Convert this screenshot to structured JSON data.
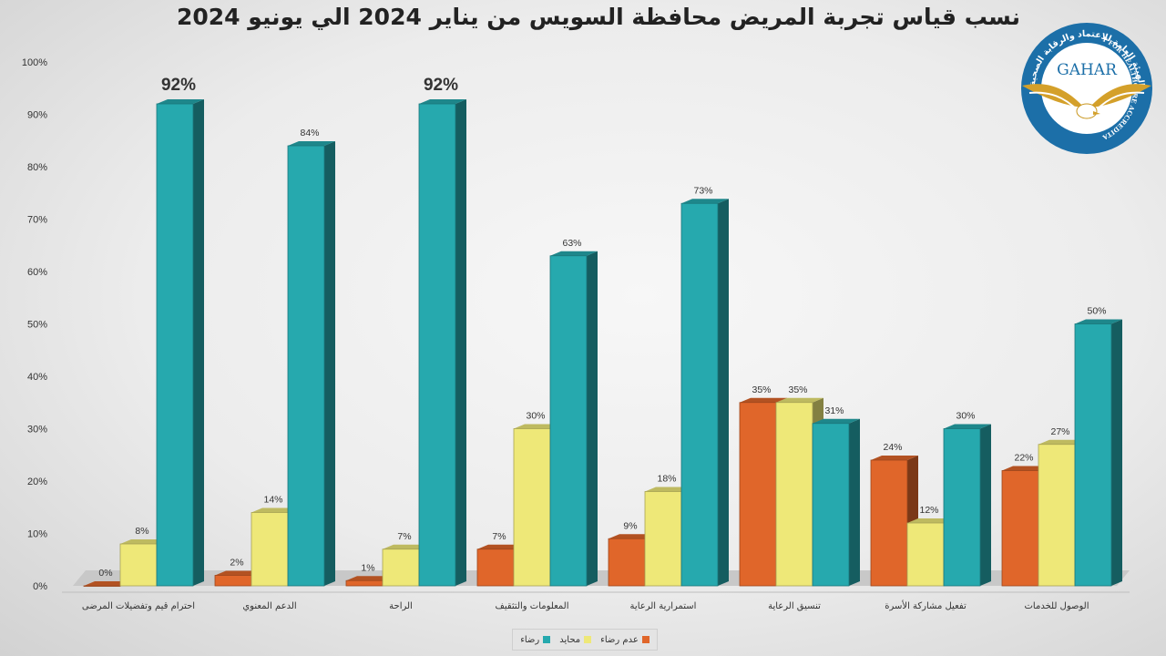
{
  "chart_data": {
    "type": "bar",
    "title": "نسب قياس تجربة المريض محافظة السويس من يناير 2024 الي يونيو 2024",
    "categories": [
      "احترام قيم وتفضيلات المرضى",
      "الدعم المعنوي",
      "الراحة",
      "المعلومات والتثقيف",
      "استمرارية الرعاية",
      "تنسيق الرعاية",
      "تفعيل مشاركة الأسرة",
      "الوصول للخدمات"
    ],
    "series": [
      {
        "name": "عدم رضاء",
        "color": "#e0662a",
        "values": [
          0,
          2,
          1,
          7,
          9,
          35,
          24,
          22
        ],
        "labels": [
          "0%",
          "2%",
          "1%",
          "7%",
          "9%",
          "35%",
          "24%",
          "22%"
        ]
      },
      {
        "name": "محايد",
        "color": "#eee878",
        "values": [
          8,
          14,
          7,
          30,
          18,
          35,
          12,
          27
        ],
        "labels": [
          "8%",
          "14%",
          "7%",
          "30%",
          "18%",
          "35%",
          "12%",
          "27%"
        ]
      },
      {
        "name": "رضاء",
        "color": "#26a9ae",
        "values": [
          92,
          84,
          92,
          63,
          73,
          31,
          30,
          50
        ],
        "labels": [
          "92%",
          "84%",
          "92%",
          "63%",
          "73%",
          "31%",
          "30%",
          "50%"
        ]
      }
    ],
    "ylim": [
      0,
      100
    ],
    "yticks": [
      "0%",
      "10%",
      "20%",
      "30%",
      "40%",
      "50%",
      "60%",
      "70%",
      "80%",
      "90%",
      "100%"
    ],
    "legend_position": "bottom",
    "grid": false
  },
  "logo": {
    "name": "GAHAR",
    "arc_ar": "الهيئة العامة للاعتماد والرقابة الصحية",
    "arc_en": "GENERAL AUTHORITY FOR HEALTHCARE ACCREDITATION & REGULATION"
  }
}
